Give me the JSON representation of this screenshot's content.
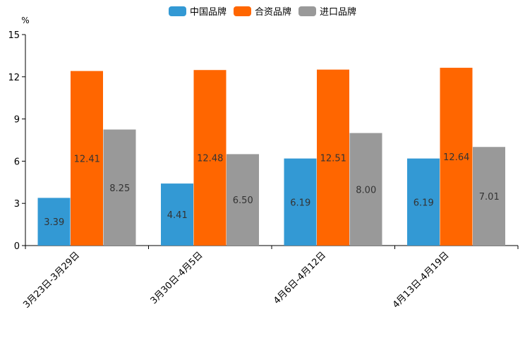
{
  "chart_data": {
    "type": "bar",
    "title": "",
    "ylabel": "%",
    "xlabel": "",
    "ylim": [
      0,
      15
    ],
    "yticks": [
      0,
      3,
      6,
      9,
      12,
      15
    ],
    "legend_position": "top-center",
    "grid": false,
    "categories": [
      "3月23日-3月29日",
      "3月30日-4月5日",
      "4月6日-4月12日",
      "4月13日-4月19日"
    ],
    "series": [
      {
        "name": "中国品牌",
        "color": "#3399d4",
        "values": [
          3.39,
          4.41,
          6.19,
          6.19
        ],
        "labels": [
          "3.39",
          "4.41",
          "6.19",
          "6.19"
        ]
      },
      {
        "name": "合资品牌",
        "color": "#ff6600",
        "values": [
          12.41,
          12.48,
          12.51,
          12.64
        ],
        "labels": [
          "12.41",
          "12.48",
          "12.51",
          "12.64"
        ]
      },
      {
        "name": "进口品牌",
        "color": "#999999",
        "values": [
          8.25,
          6.5,
          8.0,
          7.01
        ],
        "labels": [
          "8.25",
          "6.50",
          "8.00",
          "7.01"
        ]
      }
    ]
  }
}
